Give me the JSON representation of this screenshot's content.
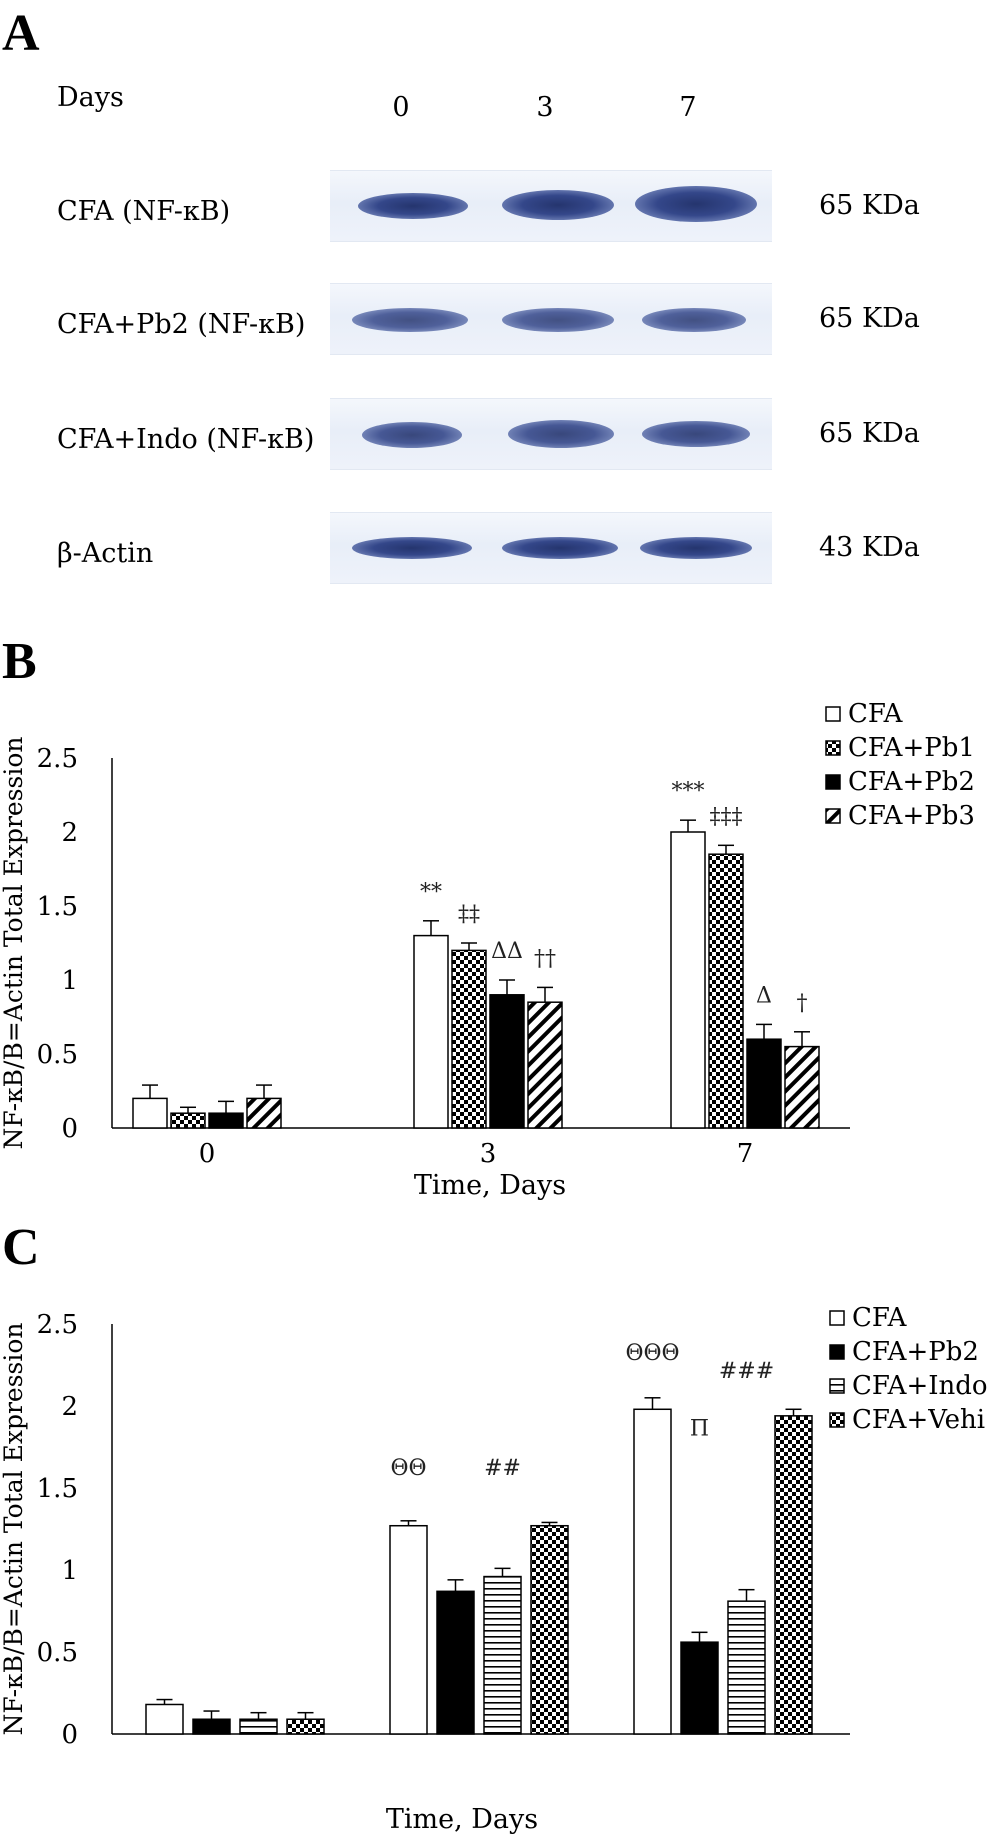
{
  "panel_a": {
    "letter": "A",
    "days_label": "Days",
    "days": [
      "0",
      "3",
      "7"
    ],
    "rows": [
      {
        "label": "CFA (NF-κB)",
        "size": "65 KDa"
      },
      {
        "label": "CFA+Pb2 (NF-κB)",
        "size": "65 KDa"
      },
      {
        "label": "CFA+Indo (NF-κB)",
        "size": "65 KDa"
      },
      {
        "label": "β-Actin",
        "size": "43 KDa"
      }
    ],
    "band_color": "#2b3a78"
  },
  "panel_b": {
    "letter": "B",
    "chart_data": {
      "type": "bar",
      "categories": [
        "0",
        "3",
        "7"
      ],
      "xlabel": "Time, Days",
      "ylabel": "NF-κB/B=Actin Total Expression",
      "ylim": [
        0,
        2.5
      ],
      "yticks": [
        "0",
        "0.5",
        "1",
        "1.5",
        "2",
        "2.5"
      ],
      "legend_position": "top-right",
      "series": [
        {
          "name": "CFA",
          "pattern": "white",
          "values": [
            0.2,
            1.3,
            2.0
          ],
          "errors": [
            0.09,
            0.1,
            0.08
          ]
        },
        {
          "name": "CFA+Pb1",
          "pattern": "checker",
          "values": [
            0.1,
            1.2,
            1.85
          ],
          "errors": [
            0.04,
            0.05,
            0.06
          ]
        },
        {
          "name": "CFA+Pb2",
          "pattern": "black",
          "values": [
            0.1,
            0.9,
            0.6
          ],
          "errors": [
            0.08,
            0.1,
            0.1
          ]
        },
        {
          "name": "CFA+Pb3",
          "pattern": "diagonal",
          "values": [
            0.2,
            0.85,
            0.55
          ],
          "errors": [
            0.09,
            0.1,
            0.1
          ]
        }
      ],
      "annotations": [
        {
          "text": "**",
          "category": 1,
          "series": 0
        },
        {
          "text": "‡‡",
          "category": 1,
          "series": 1
        },
        {
          "text": "ΔΔ",
          "category": 1,
          "series": 2
        },
        {
          "text": "††",
          "category": 1,
          "series": 3
        },
        {
          "text": "***",
          "category": 2,
          "series": 0
        },
        {
          "text": "‡‡‡",
          "category": 2,
          "series": 1
        },
        {
          "text": "Δ",
          "category": 2,
          "series": 2
        },
        {
          "text": "†",
          "category": 2,
          "series": 3
        }
      ]
    }
  },
  "panel_c": {
    "letter": "C",
    "chart_data": {
      "type": "bar",
      "categories": [
        "",
        "",
        ""
      ],
      "xlabel": "Time, Days",
      "ylabel": "NF-κB/B=Actin Total Expression",
      "ylim": [
        0,
        2.5
      ],
      "yticks": [
        "0",
        "0.5",
        "1",
        "1.5",
        "2",
        "2.5"
      ],
      "legend_position": "top-right",
      "series": [
        {
          "name": "CFA",
          "pattern": "white",
          "values": [
            0.18,
            1.27,
            1.98
          ],
          "errors": [
            0.03,
            0.03,
            0.07
          ]
        },
        {
          "name": "CFA+Pb2",
          "pattern": "black",
          "values": [
            0.09,
            0.87,
            0.56
          ],
          "errors": [
            0.05,
            0.07,
            0.06
          ]
        },
        {
          "name": "CFA+Indo",
          "pattern": "horizontal",
          "values": [
            0.09,
            0.96,
            0.81
          ],
          "errors": [
            0.04,
            0.05,
            0.07
          ]
        },
        {
          "name": "CFA+Vehi",
          "pattern": "checker",
          "values": [
            0.09,
            1.27,
            1.94
          ],
          "errors": [
            0.04,
            0.02,
            0.04
          ]
        }
      ],
      "annotations": [
        {
          "text": "ΘΘ",
          "category": 1,
          "series": 0,
          "level": 1.58
        },
        {
          "text": "##",
          "category": 1,
          "series": 2,
          "level": 1.58
        },
        {
          "text": "ΘΘΘ",
          "category": 2,
          "series": 0,
          "level": 2.28
        },
        {
          "text": "Π",
          "category": 2,
          "series": 1,
          "level": 1.82
        },
        {
          "text": "###",
          "category": 2,
          "series": 2,
          "level": 2.17
        }
      ]
    }
  }
}
